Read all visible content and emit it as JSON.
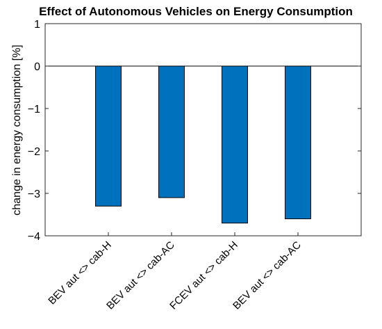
{
  "chart_data": {
    "type": "bar",
    "title": "Effect of Autonomous Vehicles on Energy Consumption",
    "xlabel": "",
    "ylabel": "change in energy consumption [%]",
    "categories": [
      "BEV aut <> cab-H",
      "BEV aut <> cab-AC",
      "FCEV aut <> cab-H",
      "BEV aut <> cab-AC"
    ],
    "values": [
      -3.3,
      -3.1,
      -3.7,
      -3.6
    ],
    "ylim": [
      -4,
      1
    ],
    "yticks": [
      1,
      0,
      -1,
      -2,
      -3,
      -4
    ],
    "ytick_labels": [
      "1",
      "0",
      "−1",
      "−2",
      "−3",
      "−4"
    ],
    "grid": false,
    "bar_color": "#0072BD"
  }
}
